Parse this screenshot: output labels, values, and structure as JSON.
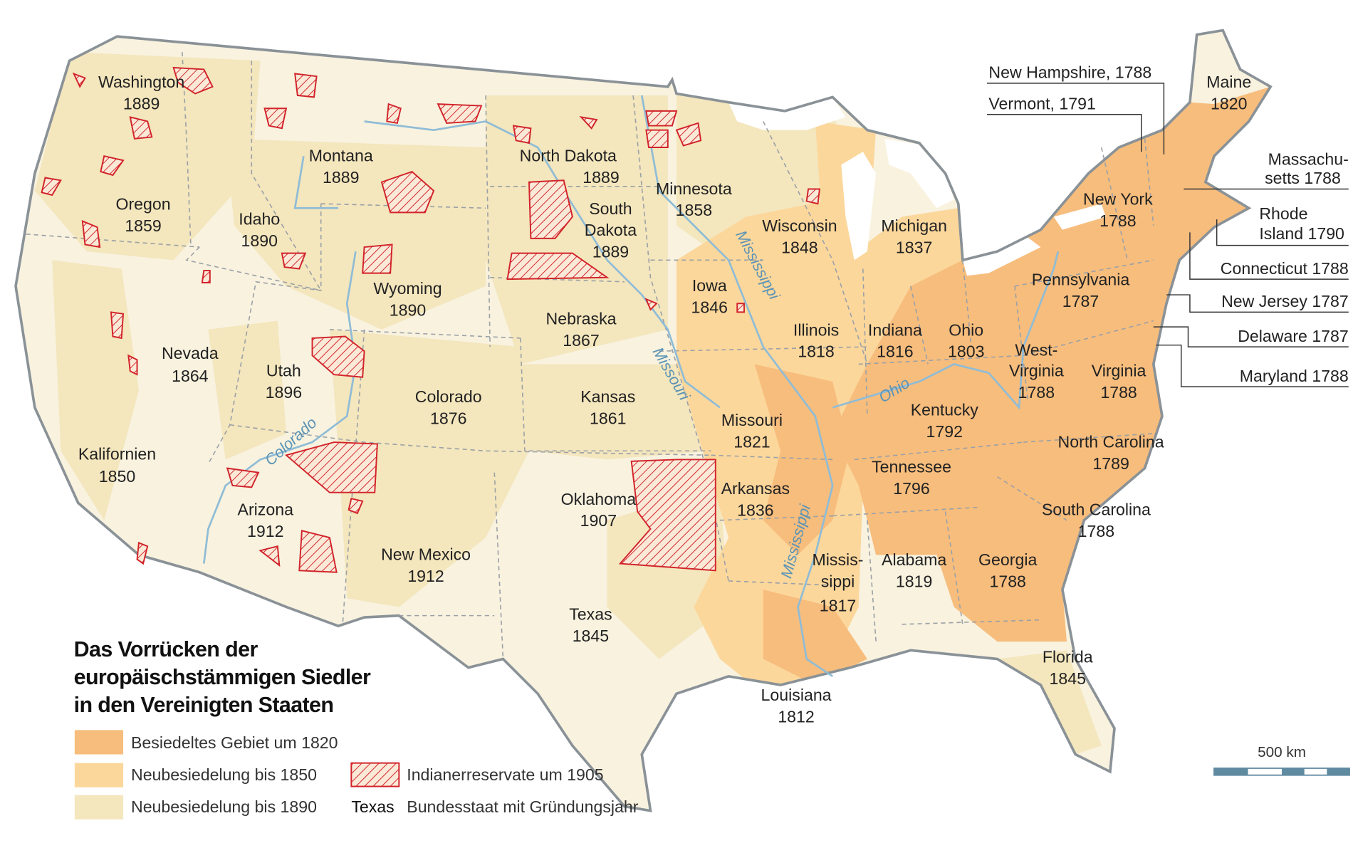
{
  "title": [
    "Das Vorrücken der",
    "europäischstämmigen Siedler",
    "in den Vereinigten Staaten"
  ],
  "legend": {
    "settled_1820": "Besiedeltes Gebiet um 1820",
    "settled_1850": "Neubesiedelung bis 1850",
    "settled_1890": "Neubesiedelung bis 1890",
    "reservations": "Indianerreservate um 1905",
    "state_sample": "Texas",
    "state_desc": "Bundesstaat mit Gründungsjahr"
  },
  "colors": {
    "settled_1820": "#f7bd7d",
    "settled_1850": "#fcd79c",
    "settled_1890": "#f4e6bd",
    "unsettled": "#f8f2df",
    "reservation": "#d2232a",
    "river": "#8fbcd6",
    "border": "#8a9297"
  },
  "scale": {
    "label": "500 km"
  },
  "rivers": {
    "mississippi": "Mississippi",
    "mississippi_south": "Mississippi",
    "missouri": "Missouri",
    "ohio": "Ohio",
    "colorado": "Colorado"
  },
  "states": {
    "washington": [
      "Washington",
      "1889"
    ],
    "oregon": [
      "Oregon",
      "1859"
    ],
    "california": [
      "Kalifornien",
      "1850"
    ],
    "nevada": [
      "Nevada",
      "1864"
    ],
    "idaho": [
      "Idaho",
      "1890"
    ],
    "montana": [
      "Montana",
      "1889"
    ],
    "wyoming": [
      "Wyoming",
      "1890"
    ],
    "utah": [
      "Utah",
      "1896"
    ],
    "arizona": [
      "Arizona",
      "1912"
    ],
    "colorado": [
      "Colorado",
      "1876"
    ],
    "new_mexico": [
      "New Mexico",
      "1912"
    ],
    "north_dakota": [
      "North Dakota",
      "1889"
    ],
    "south_dakota": [
      "South",
      "Dakota",
      "1889"
    ],
    "nebraska": [
      "Nebraska",
      "1867"
    ],
    "kansas": [
      "Kansas",
      "1861"
    ],
    "oklahoma": [
      "Oklahoma",
      "1907"
    ],
    "texas": [
      "Texas",
      "1845"
    ],
    "minnesota": [
      "Minnesota",
      "1858"
    ],
    "iowa": [
      "Iowa",
      "1846"
    ],
    "missouri": [
      "Missouri",
      "1821"
    ],
    "arkansas": [
      "Arkansas",
      "1836"
    ],
    "louisiana": [
      "Louisiana",
      "1812"
    ],
    "wisconsin": [
      "Wisconsin",
      "1848"
    ],
    "illinois": [
      "Illinois",
      "1818"
    ],
    "michigan": [
      "Michigan",
      "1837"
    ],
    "indiana": [
      "Indiana",
      "1816"
    ],
    "ohio": [
      "Ohio",
      "1803"
    ],
    "kentucky": [
      "Kentucky",
      "1792"
    ],
    "tennessee": [
      "Tennessee",
      "1796"
    ],
    "mississippi": [
      "Missis-",
      "sippi",
      "1817"
    ],
    "alabama": [
      "Alabama",
      "1819"
    ],
    "georgia": [
      "Georgia",
      "1788"
    ],
    "florida": [
      "Florida",
      "1845"
    ],
    "south_carolina": [
      "South Carolina",
      "1788"
    ],
    "north_carolina": [
      "North Carolina",
      "1789"
    ],
    "virginia": [
      "Virginia",
      "1788"
    ],
    "west_virginia": [
      "West-",
      "Virginia",
      "1788"
    ],
    "pennsylvania": [
      "Pennsylvania",
      "1787"
    ],
    "new_york": [
      "New York",
      "1788"
    ],
    "maine": [
      "Maine",
      "1820"
    ]
  },
  "callouts": {
    "new_hampshire": "New Hampshire, 1788",
    "vermont": "Vermont, 1791",
    "massachusetts": [
      "Massachu-",
      "setts 1788"
    ],
    "rhode_island": [
      "Rhode",
      "Island 1790"
    ],
    "connecticut": "Connecticut 1788",
    "new_jersey": "New Jersey 1787",
    "delaware": "Delaware 1787",
    "maryland": "Maryland 1788"
  }
}
